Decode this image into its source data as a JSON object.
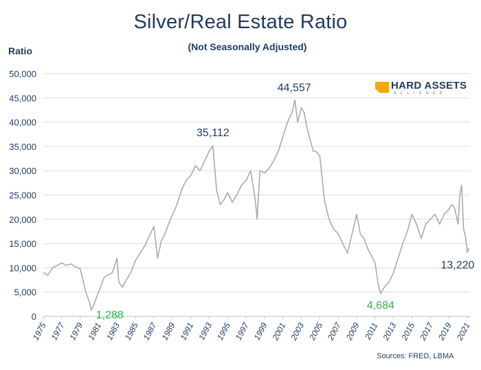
{
  "chart_data": {
    "type": "line",
    "title": "Silver/Real Estate Ratio",
    "subtitle": "(Not Seasonally Adjusted)",
    "ylabel": "Ratio",
    "xlabel": "",
    "ylim": [
      0,
      50000
    ],
    "xlim": [
      1975,
      2021.3
    ],
    "y_ticks": [
      0,
      5000,
      10000,
      15000,
      20000,
      25000,
      30000,
      35000,
      40000,
      45000,
      50000
    ],
    "y_tick_labels": [
      "0",
      "5,000",
      "10,000",
      "15,000",
      "20,000",
      "25,000",
      "30,000",
      "35,000",
      "40,000",
      "45,000",
      "50,000"
    ],
    "x_tick_labels": [
      "1975",
      "1977",
      "1979",
      "1981",
      "1983",
      "1985",
      "1987",
      "1989",
      "1991",
      "1993",
      "1995",
      "1997",
      "1999",
      "2001",
      "2003",
      "2005",
      "2007",
      "2009",
      "2011",
      "2013",
      "2015",
      "2017",
      "2019",
      "2021"
    ],
    "grid": true,
    "legend": "none",
    "series": [
      {
        "name": "Silver/Real Estate Ratio",
        "color": "#aaaaaa",
        "x": [
          1975,
          1975.5,
          1976,
          1976.5,
          1977,
          1977.5,
          1978,
          1978.5,
          1979,
          1979.3,
          1979.6,
          1980.0,
          1980.2,
          1980.5,
          1980.8,
          1981.2,
          1981.6,
          1982.0,
          1982.5,
          1983.0,
          1983.2,
          1983.6,
          1984.0,
          1984.5,
          1985.0,
          1985.5,
          1986.0,
          1986.5,
          1987.0,
          1987.4,
          1987.8,
          1988.2,
          1988.8,
          1989.5,
          1990.0,
          1990.5,
          1991.0,
          1991.5,
          1992.0,
          1992.5,
          1993.0,
          1993.4,
          1993.8,
          1994.2,
          1994.6,
          1995.0,
          1995.5,
          1996.0,
          1996.5,
          1997.0,
          1997.5,
          1998.0,
          1998.2,
          1998.5,
          1999.0,
          1999.5,
          2000.0,
          2000.5,
          2001.0,
          2001.5,
          2002.0,
          2002.3,
          2002.6,
          2003.0,
          2003.3,
          2003.6,
          2004.0,
          2004.3,
          2004.6,
          2005.0,
          2005.5,
          2006.0,
          2006.5,
          2007.0,
          2007.5,
          2008.0,
          2008.5,
          2009.0,
          2009.4,
          2009.8,
          2010.2,
          2010.6,
          2011.0,
          2011.3,
          2011.6,
          2012.0,
          2012.5,
          2013.0,
          2013.5,
          2014.0,
          2014.5,
          2015.0,
          2015.5,
          2016.0,
          2016.5,
          2017.0,
          2017.5,
          2018.0,
          2018.5,
          2019.0,
          2019.3,
          2019.6,
          2020.0,
          2020.2,
          2020.4,
          2020.6,
          2020.8,
          2021.0,
          2021.2
        ],
        "values": [
          9000,
          8500,
          10000,
          10500,
          11000,
          10500,
          10800,
          10200,
          9800,
          7500,
          5000,
          3000,
          1288,
          2500,
          4000,
          6000,
          8000,
          8500,
          9000,
          12000,
          7000,
          6000,
          7500,
          9000,
          11500,
          13000,
          14500,
          16500,
          18500,
          12000,
          15500,
          17000,
          20000,
          23000,
          26000,
          28000,
          29000,
          31000,
          30000,
          32000,
          34000,
          35112,
          26000,
          23000,
          24000,
          25500,
          23500,
          25000,
          27000,
          28000,
          30000,
          24000,
          20000,
          30000,
          29500,
          30500,
          32000,
          34000,
          37000,
          40000,
          42000,
          44557,
          40000,
          43000,
          42000,
          39000,
          36000,
          34000,
          34000,
          33000,
          24000,
          20000,
          18000,
          17000,
          15000,
          13000,
          17000,
          21000,
          17000,
          16000,
          14000,
          12500,
          11000,
          7000,
          4684,
          6000,
          7000,
          9000,
          12000,
          15000,
          17500,
          21000,
          19000,
          16000,
          19000,
          20000,
          21000,
          19000,
          21000,
          22000,
          23000,
          22500,
          19000,
          25000,
          27000,
          18000,
          16500,
          13220,
          14000
        ]
      }
    ],
    "annotations": [
      {
        "text": "1,288",
        "x": 1980.2,
        "y": 1288,
        "color": "#2fb34a"
      },
      {
        "text": "35,112",
        "x": 1993.4,
        "y": 35112,
        "color": "#1f3a5f"
      },
      {
        "text": "44,557",
        "x": 2002.3,
        "y": 44557,
        "color": "#1f3a5f"
      },
      {
        "text": "4,684",
        "x": 2011.6,
        "y": 4684,
        "color": "#2fb34a"
      },
      {
        "text": "13,220",
        "x": 2021.0,
        "y": 13220,
        "color": "#1f3a5f"
      }
    ]
  },
  "logo": {
    "main": "HARD ASSETS",
    "sub": "ALLIANCE",
    "accent": "#f2a900"
  },
  "source": "Sources: FRED, LBMA"
}
